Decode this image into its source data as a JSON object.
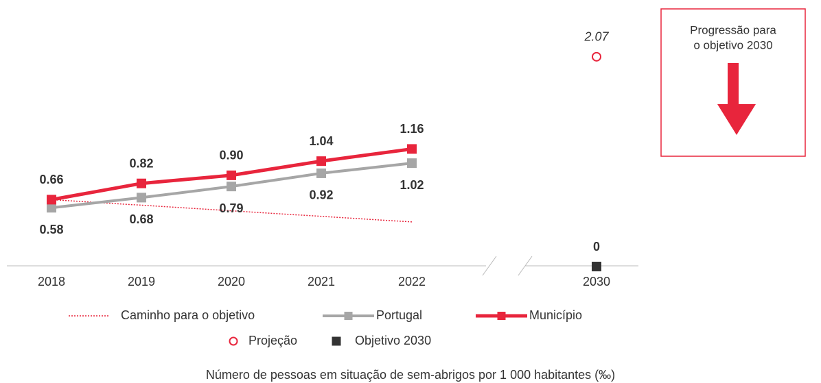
{
  "chart_data": {
    "type": "line",
    "categories": [
      "2018",
      "2019",
      "2020",
      "2021",
      "2022",
      "2030"
    ],
    "ylim": [
      0,
      2.4
    ],
    "series": [
      {
        "name": "Caminho para o objetivo",
        "color": "#e8253c",
        "linestyle": "dotted",
        "marker": "none",
        "values": [
          0.66,
          0.605,
          0.55,
          0.495,
          0.44,
          null
        ]
      },
      {
        "name": "Portugal",
        "color": "#a6a6a6",
        "linestyle": "solid",
        "marker": "square",
        "label_color": "#707070",
        "label_side": "below",
        "values": [
          0.58,
          0.68,
          0.79,
          0.92,
          1.02,
          null
        ],
        "value_labels": [
          "0.58",
          "0.68",
          "0.79",
          "0.92",
          "1.02",
          null
        ]
      },
      {
        "name": "Município",
        "color": "#e8253c",
        "linestyle": "solid",
        "marker": "square",
        "label_color": "#e8253c",
        "label_side": "above",
        "values": [
          0.66,
          0.82,
          0.9,
          1.04,
          1.16,
          null
        ],
        "value_labels": [
          "0.66",
          "0.82",
          "0.90",
          "1.04",
          "1.16",
          null
        ]
      },
      {
        "name": "Projeção",
        "color": "#e8253c",
        "linestyle": "none",
        "marker": "circle",
        "label_color": "#e8253c",
        "label_side": "above",
        "label_style": "italic",
        "values": [
          null,
          null,
          null,
          null,
          null,
          2.07
        ]
      },
      {
        "name": "Objetivo 2030",
        "color": "#333333",
        "linestyle": "none",
        "marker": "square",
        "label_color": "#1a1a1a",
        "label_side": "above",
        "values": [
          null,
          null,
          null,
          null,
          null,
          0
        ]
      }
    ],
    "annotation": [
      "Progressão para",
      "o objetivo 2030"
    ],
    "caption": "Número de pessoas em situação de sem-abrigos por 1 000 habitantes (‰)"
  }
}
